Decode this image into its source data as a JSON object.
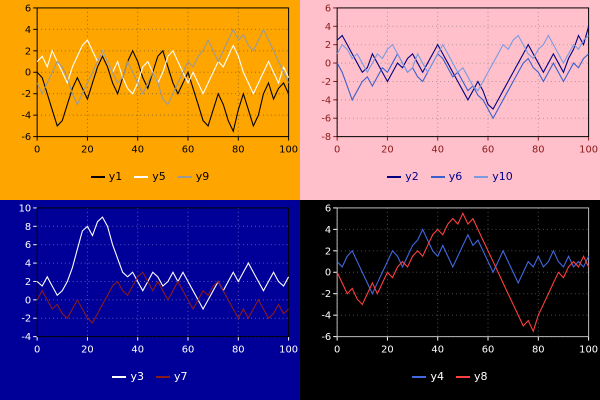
{
  "chart_data": [
    {
      "type": "line",
      "position": "top-left",
      "title": "",
      "xlabel": "",
      "ylabel": "",
      "background": "#FFA500",
      "tick_color": "#000000",
      "legend_text_color": "#000000",
      "grid_color": "rgba(60,60,60,0.55)",
      "border_color": "#000000",
      "x_range": [
        0,
        100
      ],
      "y_range": [
        -6,
        6
      ],
      "x_ticks": [
        0,
        20,
        40,
        60,
        80,
        100
      ],
      "y_ticks": [
        6,
        4,
        2,
        0,
        -2,
        -4,
        -6
      ],
      "series": [
        {
          "name": "y1",
          "color": "#000000",
          "values": [
            0,
            -0.5,
            -2,
            -3.5,
            -5,
            -4.5,
            -3,
            -1.5,
            -0.5,
            -1.5,
            -2.5,
            -1,
            0.5,
            1.5,
            0.5,
            -1,
            -2,
            -0.5,
            1,
            2,
            1,
            -0.5,
            -1.5,
            0,
            1.5,
            2,
            0.5,
            -1,
            -2,
            -1,
            0,
            -1.5,
            -3,
            -4.5,
            -5,
            -3.5,
            -2,
            -3,
            -4.5,
            -5.5,
            -3.5,
            -2,
            -3.5,
            -5,
            -4,
            -2,
            -1,
            -2.5,
            -1.5,
            -1,
            -2
          ]
        },
        {
          "name": "y5",
          "color": "#FFFFFF",
          "values": [
            1,
            1.5,
            0.5,
            2,
            1,
            0,
            -1,
            0.5,
            1.5,
            2.5,
            3,
            2,
            1,
            2,
            1,
            0,
            1,
            -0.5,
            -1.5,
            -2,
            -1,
            0.5,
            1,
            0,
            -1,
            0,
            1.5,
            2,
            1,
            0,
            -1,
            0,
            -1,
            -2,
            -1,
            0,
            1,
            0.5,
            1.5,
            2.5,
            1.5,
            0,
            -1,
            -2,
            -1,
            0,
            1,
            0,
            -1,
            0.5,
            -0.5
          ]
        },
        {
          "name": "y9",
          "color": "#999999",
          "values": [
            -1,
            -2,
            -1,
            0,
            1,
            0.5,
            -0.5,
            -2,
            -3,
            -2,
            -1,
            0,
            1,
            2,
            1,
            0,
            -1,
            -0.5,
            1,
            0,
            -1,
            -2,
            -1,
            0,
            -1,
            -2.5,
            -3,
            -2,
            -1,
            0,
            1,
            0.5,
            1.5,
            2,
            3,
            2,
            1,
            2,
            3,
            4,
            3,
            3.5,
            2.5,
            2,
            3,
            4,
            3,
            2,
            1,
            0,
            -1
          ]
        }
      ]
    },
    {
      "type": "line",
      "position": "top-right",
      "title": "",
      "xlabel": "",
      "ylabel": "",
      "background": "#FFC0CB",
      "tick_color": "#8B1A1A",
      "legend_text_color": "#00008B",
      "grid_color": "rgba(120,120,120,0.6)",
      "border_color": "#000000",
      "x_range": [
        0,
        100
      ],
      "y_range": [
        -8,
        6
      ],
      "x_ticks": [
        0,
        20,
        40,
        60,
        80,
        100
      ],
      "y_ticks": [
        6,
        4,
        2,
        0,
        -2,
        -4,
        -6,
        -8
      ],
      "series": [
        {
          "name": "y2",
          "color": "#000080",
          "values": [
            2.5,
            3,
            2,
            1,
            0,
            -1,
            -0.5,
            1,
            0,
            -1,
            -2,
            -1,
            0,
            -0.5,
            0.5,
            1,
            0,
            -1,
            0,
            1,
            2,
            1,
            0,
            -1,
            -2,
            -3,
            -4,
            -3,
            -2,
            -3,
            -4.5,
            -5,
            -4,
            -3,
            -2,
            -1,
            0,
            1,
            2,
            1,
            0,
            -1,
            0,
            1,
            0,
            -1,
            0.5,
            1.5,
            3,
            2,
            4
          ]
        },
        {
          "name": "y6",
          "color": "#3A5FCD",
          "values": [
            0,
            -1,
            -2.5,
            -4,
            -3,
            -2,
            -1.5,
            -2.5,
            -1.5,
            -0.5,
            -1,
            0,
            1,
            0,
            -1,
            -0.5,
            -1.5,
            -2,
            -1,
            0,
            1,
            0.5,
            -0.5,
            -1.5,
            -1,
            -2,
            -3,
            -2.5,
            -3.5,
            -4,
            -5,
            -6,
            -5,
            -4,
            -3,
            -2,
            -1,
            0,
            0.5,
            -0.5,
            -1,
            -2,
            -1,
            0,
            -1,
            -2,
            -1,
            0,
            -0.5,
            0.5,
            1
          ]
        },
        {
          "name": "y10",
          "color": "#7A9BE0",
          "values": [
            1,
            2,
            1.5,
            0.5,
            1,
            0,
            -1,
            0,
            1,
            0.5,
            1.5,
            2,
            1,
            0,
            -1,
            -0.5,
            1,
            0,
            -1,
            0,
            1,
            2,
            1,
            0,
            -1,
            -0.5,
            -1.5,
            -2.5,
            -3,
            -2,
            -1,
            0,
            1,
            2,
            1.5,
            2.5,
            3,
            2,
            1,
            0.5,
            1.5,
            2,
            3,
            2,
            1,
            0,
            1,
            2,
            1.5,
            2.5,
            3
          ]
        }
      ]
    },
    {
      "type": "line",
      "position": "bottom-left",
      "title": "",
      "xlabel": "",
      "ylabel": "",
      "background": "#000099",
      "tick_color": "#FFFFFF",
      "legend_text_color": "#FFFFFF",
      "grid_color": "rgba(255,255,255,0.35)",
      "border_color": "#000000",
      "x_range": [
        0,
        100
      ],
      "y_range": [
        -4,
        10
      ],
      "x_ticks": [
        0,
        20,
        40,
        60,
        80,
        100
      ],
      "y_ticks": [
        10,
        8,
        6,
        4,
        2,
        0,
        -2,
        -4
      ],
      "series": [
        {
          "name": "y3",
          "color": "#FFFFFF",
          "values": [
            2,
            1.5,
            2.5,
            1.5,
            0.5,
            1,
            2,
            3.5,
            5.5,
            7.5,
            8,
            7,
            8.5,
            9,
            8,
            6,
            4.5,
            3,
            2.5,
            3,
            2,
            1,
            2,
            3,
            2.5,
            1.5,
            2,
            3,
            2,
            3,
            2,
            1,
            0,
            -1,
            0,
            1,
            2,
            1,
            2,
            3,
            2,
            3,
            4,
            3,
            2,
            1,
            2,
            3,
            2,
            1.5,
            2.5
          ]
        },
        {
          "name": "y7",
          "color": "#8B1A1A",
          "values": [
            0,
            1,
            0,
            -1,
            -0.5,
            -1.5,
            -2,
            -1,
            0,
            -1,
            -2,
            -2.5,
            -1.5,
            -0.5,
            0.5,
            1.5,
            2,
            1,
            0.5,
            1.5,
            2.5,
            3,
            2,
            1,
            2,
            1,
            0,
            1,
            2,
            1,
            0,
            -1,
            0,
            1,
            0.5,
            1.5,
            2,
            1,
            0,
            -1,
            -2,
            -1,
            -2,
            -1,
            0,
            -1,
            -2,
            -1.5,
            -0.5,
            -1.5,
            -1
          ]
        }
      ]
    },
    {
      "type": "line",
      "position": "bottom-right",
      "title": "",
      "xlabel": "",
      "ylabel": "",
      "background": "#000000",
      "tick_color": "#FFFFFF",
      "legend_text_color": "#FFFFFF",
      "grid_color": "rgba(255,255,255,0.3)",
      "border_color": "#BBBBBB",
      "x_range": [
        0,
        100
      ],
      "y_range": [
        -6,
        6
      ],
      "x_ticks": [
        0,
        20,
        40,
        60,
        80,
        100
      ],
      "y_ticks": [
        6,
        4,
        2,
        0,
        -2,
        -4,
        -6
      ],
      "series": [
        {
          "name": "y4",
          "color": "#4169E1",
          "values": [
            1,
            0.5,
            1.5,
            2,
            1,
            0,
            -1,
            -2,
            -1,
            0,
            1,
            2,
            1.5,
            0.5,
            1.5,
            2.5,
            3,
            4,
            3,
            2,
            1.5,
            2.5,
            1.5,
            0.5,
            1.5,
            2.5,
            3.5,
            2.5,
            3,
            2,
            1,
            0,
            1,
            2,
            1,
            0,
            -1,
            0,
            1,
            0.5,
            1.5,
            0.5,
            1,
            2,
            1,
            0.5,
            1.5,
            0.5,
            1,
            0.5,
            1.5
          ]
        },
        {
          "name": "y8",
          "color": "#FF4040",
          "values": [
            0,
            -1,
            -2,
            -1.5,
            -2.5,
            -3,
            -2,
            -1,
            -2,
            -1,
            0,
            -0.5,
            0.5,
            1,
            0.5,
            1.5,
            2,
            1.5,
            2.5,
            3.5,
            4,
            3.5,
            4.5,
            5,
            4.5,
            5.5,
            4.5,
            5,
            4,
            3,
            2,
            1,
            0,
            -1,
            -2,
            -3,
            -4,
            -5,
            -4.5,
            -5.5,
            -4,
            -3,
            -2,
            -1,
            0,
            -0.5,
            0.5,
            1,
            0.5,
            1.5,
            0.5
          ]
        }
      ]
    }
  ]
}
